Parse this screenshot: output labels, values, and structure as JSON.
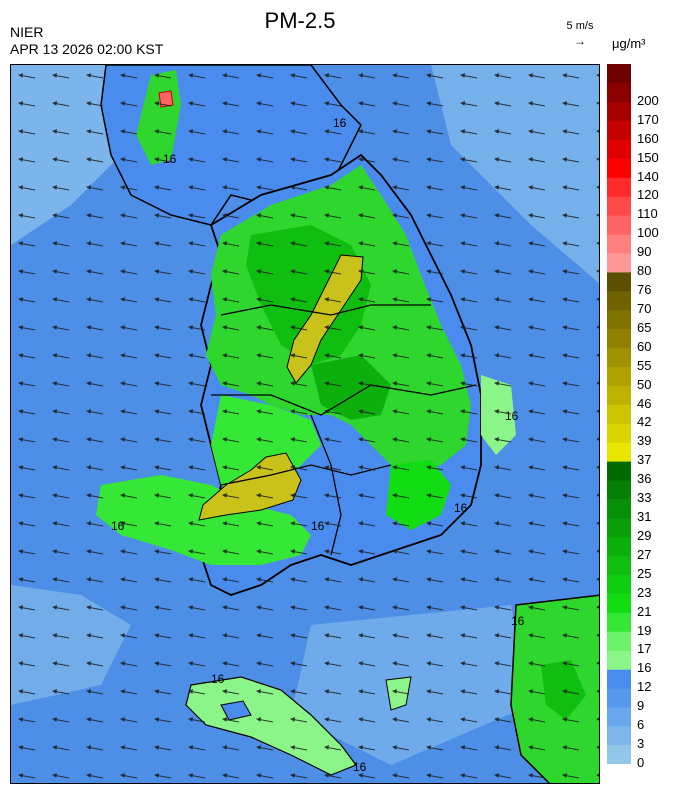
{
  "header": {
    "title": "PM-2.5",
    "agency": "NIER",
    "datetime": "APR 13 2026 02:00 KST"
  },
  "wind_reference": {
    "label": "5 m/s",
    "arrow": "→"
  },
  "legend": {
    "unit": "μg/m³",
    "bins": [
      {
        "label": "0",
        "color": "#93c7e8"
      },
      {
        "label": "3",
        "color": "#7fb7ea"
      },
      {
        "label": "6",
        "color": "#6aa6ec"
      },
      {
        "label": "9",
        "color": "#5598ee"
      },
      {
        "label": "12",
        "color": "#4a8ced"
      },
      {
        "label": "16",
        "color": "#8cf58a"
      },
      {
        "label": "17",
        "color": "#6df06a"
      },
      {
        "label": "19",
        "color": "#36e836"
      },
      {
        "label": "21",
        "color": "#12dc12"
      },
      {
        "label": "23",
        "color": "#0fcd0f"
      },
      {
        "label": "25",
        "color": "#0fbe0f"
      },
      {
        "label": "27",
        "color": "#0caf0c"
      },
      {
        "label": "29",
        "color": "#0a9f0a"
      },
      {
        "label": "31",
        "color": "#088f08"
      },
      {
        "label": "33",
        "color": "#067f06"
      },
      {
        "label": "36",
        "color": "#006a00"
      },
      {
        "label": "37",
        "color": "#e6e600"
      },
      {
        "label": "39",
        "color": "#d9d500"
      },
      {
        "label": "42",
        "color": "#ccc400"
      },
      {
        "label": "46",
        "color": "#bdb200"
      },
      {
        "label": "50",
        "color": "#aea200"
      },
      {
        "label": "55",
        "color": "#9f9200"
      },
      {
        "label": "60",
        "color": "#908200"
      },
      {
        "label": "65",
        "color": "#807200"
      },
      {
        "label": "70",
        "color": "#706200"
      },
      {
        "label": "76",
        "color": "#5c5000"
      },
      {
        "label": "80",
        "color": "#ff9999"
      },
      {
        "label": "90",
        "color": "#ff7f7f"
      },
      {
        "label": "100",
        "color": "#ff6464"
      },
      {
        "label": "110",
        "color": "#ff4a4a"
      },
      {
        "label": "120",
        "color": "#ff2a2a"
      },
      {
        "label": "140",
        "color": "#ff0000"
      },
      {
        "label": "150",
        "color": "#e00000"
      },
      {
        "label": "160",
        "color": "#c40000"
      },
      {
        "label": "170",
        "color": "#a80000"
      },
      {
        "label": "200",
        "color": "#8a0000"
      },
      {
        "label": "",
        "color": "#6e0000"
      }
    ]
  },
  "map": {
    "contour_labels": [
      "16",
      "16",
      "16",
      "16",
      "16",
      "16",
      "16",
      "16",
      "16"
    ],
    "colors": {
      "sea_background": "#4d8fe6",
      "sea_light": "#8cc2ec",
      "land_low": "#4a8ced",
      "pm_green": "#2ed62e",
      "pm_dark_green": "#0a9f0a",
      "pm_yellow": "#c9c21a",
      "outline": "#000000"
    }
  }
}
